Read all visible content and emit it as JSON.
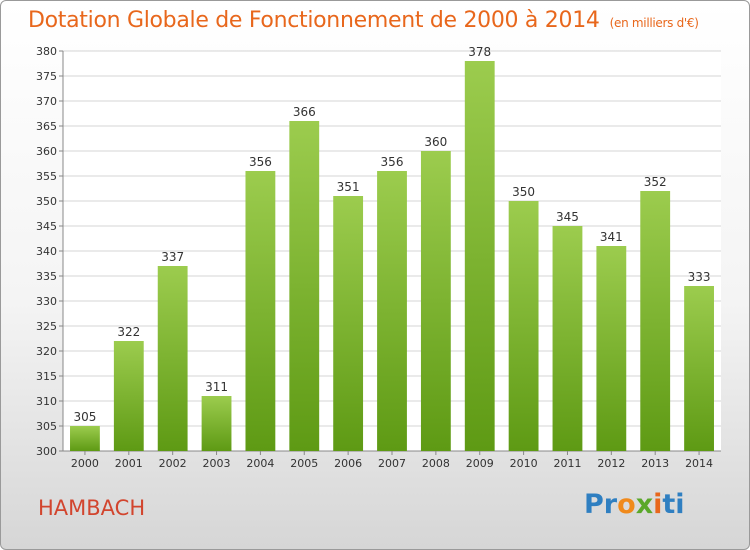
{
  "title": "Dotation Globale de Fonctionnement de 2000 à 2014",
  "unit_label": "(en milliers d'€)",
  "place": "HAMBACH",
  "brand": "Proxiti",
  "colors": {
    "bar_top": "#9ccc4e",
    "bar_bottom": "#5e9a14",
    "title": "#e8671c",
    "place": "#d2452e"
  },
  "chart_data": {
    "type": "bar",
    "title": "Dotation Globale de Fonctionnement de 2000 à 2014",
    "xlabel": "",
    "ylabel": "",
    "categories": [
      "2000",
      "2001",
      "2002",
      "2003",
      "2004",
      "2005",
      "2006",
      "2007",
      "2008",
      "2009",
      "2010",
      "2011",
      "2012",
      "2013",
      "2014"
    ],
    "values": [
      305,
      322,
      337,
      311,
      356,
      366,
      351,
      356,
      360,
      378,
      350,
      345,
      341,
      352,
      333
    ],
    "ylim": [
      300,
      380
    ],
    "yticks": [
      300,
      305,
      310,
      315,
      320,
      325,
      330,
      335,
      340,
      345,
      350,
      355,
      360,
      365,
      370,
      375,
      380
    ],
    "grid": true
  }
}
